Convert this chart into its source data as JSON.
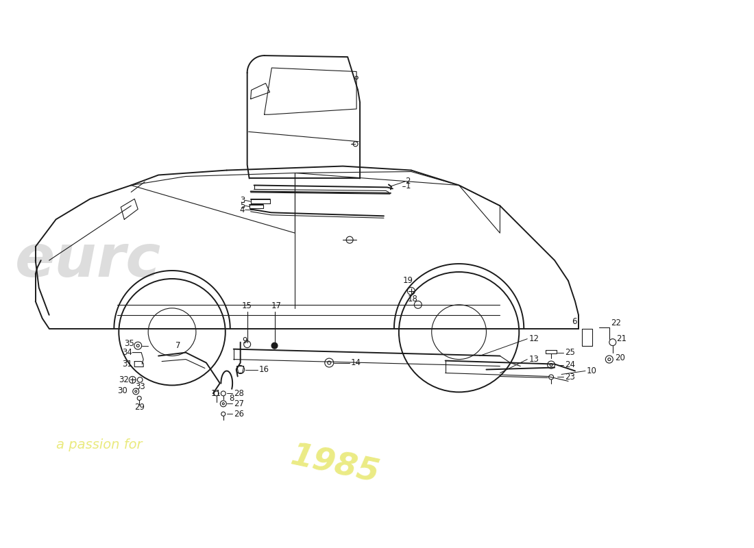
{
  "bg_color": "#ffffff",
  "line_color": "#1a1a1a",
  "lw_main": 1.4,
  "lw_thin": 0.8,
  "lw_leader": 0.7,
  "label_fs": 8.5,
  "watermark_eurc_color": "#d8d8d8",
  "watermark_passion_color": "#e8e870",
  "watermark_year_color": "#e8e870"
}
